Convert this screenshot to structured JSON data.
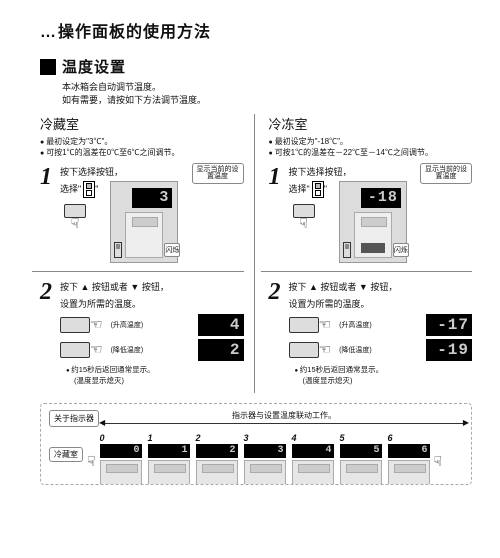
{
  "title_prefix": "…",
  "title": "操作面板的使用方法",
  "section": "温度设置",
  "intro1": "本冰箱会自动调节温度。",
  "intro2": "如有需要，请按如下方法调节温度。",
  "left": {
    "room": "冷藏室",
    "b1": "最初设定为\"3℃\"。",
    "b2": "可按1℃的温差在0℃至6℃之间调节。",
    "step1a": "按下选择按钮，",
    "step1b_pre": "选择\"",
    "step1b_post": "\"",
    "callout": "显示当前的设置温度",
    "display": "3",
    "flash": "闪烁",
    "step2a": "按下 ▲ 按钮或者 ▼ 按钮，",
    "step2b": "设置为所需的温度。",
    "up_hint": "(升高温度)",
    "dn_hint": "(降低温度)",
    "lcd_up": "4",
    "lcd_dn": "2",
    "note1": "约15秒后返回通常显示。",
    "note2": "(温度显示熄灭)"
  },
  "right": {
    "room": "冷冻室",
    "b1": "最初设定为\"-18℃\"。",
    "b2": "可按1℃的温差在－22℃至－14℃之间调节。",
    "step1a": "按下选择按钮，",
    "step1b_pre": "选择\"",
    "step1b_post": "\"",
    "callout": "显示当前的设置温度",
    "display": "-18",
    "flash": "闪烁",
    "step2a": "按下 ▲ 按钮或者 ▼ 按钮，",
    "step2b": "设置为所需的温度。",
    "up_hint": "(升高温度)",
    "dn_hint": "(降低温度)",
    "lcd_up": "-17",
    "lcd_dn": "-19",
    "note1": "约15秒后返回通常显示。",
    "note2": "(温度显示熄灭)"
  },
  "indicator": {
    "title": "关于指示器",
    "desc": "指示器与设置温度联动工作。",
    "room": "冷藏室",
    "units": [
      {
        "n": "0",
        "d": "0"
      },
      {
        "n": "1",
        "d": "1"
      },
      {
        "n": "2",
        "d": "2"
      },
      {
        "n": "3",
        "d": "3"
      },
      {
        "n": "4",
        "d": "4"
      },
      {
        "n": "5",
        "d": "5"
      },
      {
        "n": "6",
        "d": "6"
      }
    ]
  }
}
